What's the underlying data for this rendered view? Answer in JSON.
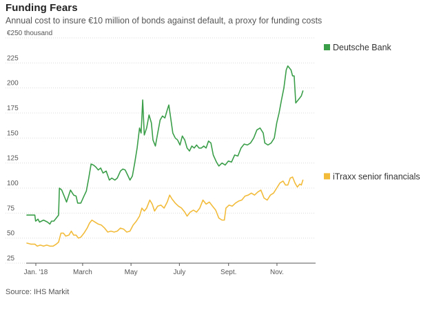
{
  "title": "Funding Fears",
  "subtitle": "Annual cost to insure €10 million of bonds against default, a proxy for funding costs",
  "source": "Source: IHS Markit",
  "chart_data": {
    "type": "line",
    "title": "Funding Fears",
    "subtitle": "Annual cost to insure €10 million of bonds against default, a proxy for funding costs",
    "ylabel": "€250 thousand",
    "xlabel": "",
    "ylim": [
      25,
      250
    ],
    "yticks": [
      25,
      50,
      75,
      100,
      125,
      150,
      175,
      200,
      225,
      250
    ],
    "ytick_labels": [
      "25",
      "50",
      "75",
      "100",
      "125",
      "150",
      "175",
      "200",
      "225",
      "€250 thousand"
    ],
    "xlim": [
      "2018-01-01",
      "2018-12-31"
    ],
    "xticks": [
      {
        "date": "2018-01-01",
        "label": "Jan. '18"
      },
      {
        "date": "2018-03-01",
        "label": "March"
      },
      {
        "date": "2018-05-01",
        "label": "May"
      },
      {
        "date": "2018-07-01",
        "label": "July"
      },
      {
        "date": "2018-09-01",
        "label": "Sept."
      },
      {
        "date": "2018-11-01",
        "label": "Nov."
      }
    ],
    "grid": "horizontal",
    "legend": "right, labels at line ends",
    "series": [
      {
        "name": "Deutsche Bank",
        "color": "#3a9e49",
        "points": [
          [
            "2018-01-01",
            73
          ],
          [
            "2018-01-06",
            73
          ],
          [
            "2018-01-11",
            73
          ],
          [
            "2018-01-12",
            67
          ],
          [
            "2018-01-15",
            69
          ],
          [
            "2018-01-17",
            66
          ],
          [
            "2018-01-22",
            68
          ],
          [
            "2018-01-27",
            66
          ],
          [
            "2018-01-30",
            64
          ],
          [
            "2018-02-01",
            67
          ],
          [
            "2018-02-04",
            67
          ],
          [
            "2018-02-07",
            70
          ],
          [
            "2018-02-10",
            73
          ],
          [
            "2018-02-11",
            100
          ],
          [
            "2018-02-14",
            98
          ],
          [
            "2018-02-17",
            92
          ],
          [
            "2018-02-20",
            86
          ],
          [
            "2018-02-25",
            98
          ],
          [
            "2018-03-01",
            93
          ],
          [
            "2018-03-04",
            92
          ],
          [
            "2018-03-06",
            85
          ],
          [
            "2018-03-10",
            85
          ],
          [
            "2018-03-14",
            92
          ],
          [
            "2018-03-17",
            97
          ],
          [
            "2018-03-20",
            110
          ],
          [
            "2018-03-23",
            124
          ],
          [
            "2018-03-26",
            123
          ],
          [
            "2018-03-29",
            121
          ],
          [
            "2018-04-01",
            118
          ],
          [
            "2018-04-04",
            120
          ],
          [
            "2018-04-07",
            115
          ],
          [
            "2018-04-11",
            117
          ],
          [
            "2018-04-15",
            108
          ],
          [
            "2018-04-18",
            110
          ],
          [
            "2018-04-22",
            108
          ],
          [
            "2018-04-25",
            110
          ],
          [
            "2018-04-29",
            117
          ],
          [
            "2018-05-02",
            119
          ],
          [
            "2018-05-05",
            118
          ],
          [
            "2018-05-08",
            113
          ],
          [
            "2018-05-11",
            108
          ],
          [
            "2018-05-14",
            112
          ],
          [
            "2018-05-17",
            125
          ],
          [
            "2018-05-20",
            140
          ],
          [
            "2018-05-23",
            160
          ],
          [
            "2018-05-25",
            155
          ],
          [
            "2018-05-27",
            188
          ],
          [
            "2018-05-29",
            153
          ],
          [
            "2018-06-01",
            160
          ],
          [
            "2018-06-04",
            173
          ],
          [
            "2018-06-07",
            165
          ],
          [
            "2018-06-09",
            148
          ],
          [
            "2018-06-12",
            142
          ],
          [
            "2018-06-15",
            155
          ],
          [
            "2018-06-18",
            168
          ],
          [
            "2018-06-21",
            172
          ],
          [
            "2018-06-24",
            170
          ],
          [
            "2018-06-27",
            178
          ],
          [
            "2018-06-29",
            183
          ],
          [
            "2018-07-01",
            172
          ],
          [
            "2018-07-04",
            155
          ],
          [
            "2018-07-07",
            150
          ],
          [
            "2018-07-10",
            148
          ],
          [
            "2018-07-13",
            143
          ],
          [
            "2018-07-16",
            152
          ],
          [
            "2018-07-19",
            148
          ],
          [
            "2018-07-22",
            140
          ],
          [
            "2018-07-25",
            137
          ],
          [
            "2018-07-28",
            142
          ],
          [
            "2018-07-31",
            140
          ],
          [
            "2018-08-03",
            143
          ],
          [
            "2018-08-06",
            140
          ],
          [
            "2018-08-09",
            140
          ],
          [
            "2018-08-12",
            142
          ],
          [
            "2018-08-15",
            140
          ],
          [
            "2018-08-18",
            147
          ],
          [
            "2018-08-21",
            145
          ],
          [
            "2018-08-24",
            133
          ],
          [
            "2018-08-28",
            126
          ],
          [
            "2018-08-31",
            122
          ],
          [
            "2018-09-04",
            125
          ],
          [
            "2018-09-08",
            123
          ],
          [
            "2018-09-12",
            127
          ],
          [
            "2018-09-16",
            126
          ],
          [
            "2018-09-20",
            133
          ],
          [
            "2018-09-24",
            132
          ],
          [
            "2018-09-28",
            140
          ],
          [
            "2018-10-02",
            144
          ],
          [
            "2018-10-06",
            143
          ],
          [
            "2018-10-10",
            145
          ],
          [
            "2018-10-14",
            150
          ],
          [
            "2018-10-18",
            158
          ],
          [
            "2018-10-22",
            160
          ],
          [
            "2018-10-26",
            155
          ],
          [
            "2018-10-28",
            145
          ],
          [
            "2018-11-01",
            143
          ],
          [
            "2018-11-05",
            145
          ],
          [
            "2018-11-09",
            150
          ],
          [
            "2018-11-12",
            165
          ],
          [
            "2018-11-15",
            175
          ],
          [
            "2018-11-18",
            188
          ],
          [
            "2018-11-21",
            200
          ],
          [
            "2018-11-24",
            218
          ],
          [
            "2018-11-26",
            222
          ],
          [
            "2018-11-28",
            220
          ],
          [
            "2018-11-30",
            218
          ],
          [
            "2018-12-02",
            212
          ],
          [
            "2018-12-04",
            212
          ],
          [
            "2018-12-06",
            185
          ],
          [
            "2018-12-09",
            188
          ],
          [
            "2018-12-11",
            190
          ],
          [
            "2018-12-13",
            192
          ],
          [
            "2018-12-15",
            197
          ]
        ]
      },
      {
        "name": "iTraxx senior financials",
        "color": "#f2bb3a",
        "points": [
          [
            "2018-01-01",
            45
          ],
          [
            "2018-01-06",
            44
          ],
          [
            "2018-01-11",
            44
          ],
          [
            "2018-01-14",
            42
          ],
          [
            "2018-01-18",
            43
          ],
          [
            "2018-01-22",
            42
          ],
          [
            "2018-01-26",
            43
          ],
          [
            "2018-01-30",
            42
          ],
          [
            "2018-02-03",
            42
          ],
          [
            "2018-02-07",
            44
          ],
          [
            "2018-02-10",
            46
          ],
          [
            "2018-02-13",
            55
          ],
          [
            "2018-02-16",
            55
          ],
          [
            "2018-02-19",
            52
          ],
          [
            "2018-02-23",
            53
          ],
          [
            "2018-02-26",
            57
          ],
          [
            "2018-03-01",
            53
          ],
          [
            "2018-03-04",
            53
          ],
          [
            "2018-03-07",
            50
          ],
          [
            "2018-03-10",
            51
          ],
          [
            "2018-03-14",
            55
          ],
          [
            "2018-03-18",
            60
          ],
          [
            "2018-03-21",
            65
          ],
          [
            "2018-03-24",
            68
          ],
          [
            "2018-03-28",
            66
          ],
          [
            "2018-04-01",
            64
          ],
          [
            "2018-04-05",
            63
          ],
          [
            "2018-04-09",
            60
          ],
          [
            "2018-04-13",
            56
          ],
          [
            "2018-04-17",
            57
          ],
          [
            "2018-04-21",
            56
          ],
          [
            "2018-04-25",
            57
          ],
          [
            "2018-04-29",
            60
          ],
          [
            "2018-05-03",
            59
          ],
          [
            "2018-05-07",
            56
          ],
          [
            "2018-05-11",
            57
          ],
          [
            "2018-05-15",
            63
          ],
          [
            "2018-05-19",
            67
          ],
          [
            "2018-05-23",
            72
          ],
          [
            "2018-05-26",
            80
          ],
          [
            "2018-05-29",
            77
          ],
          [
            "2018-06-01",
            80
          ],
          [
            "2018-06-05",
            88
          ],
          [
            "2018-06-08",
            84
          ],
          [
            "2018-06-11",
            77
          ],
          [
            "2018-06-15",
            82
          ],
          [
            "2018-06-19",
            83
          ],
          [
            "2018-06-23",
            80
          ],
          [
            "2018-06-27",
            86
          ],
          [
            "2018-06-30",
            93
          ],
          [
            "2018-07-03",
            89
          ],
          [
            "2018-07-07",
            85
          ],
          [
            "2018-07-11",
            82
          ],
          [
            "2018-07-15",
            80
          ],
          [
            "2018-07-19",
            76
          ],
          [
            "2018-07-22",
            72
          ],
          [
            "2018-07-26",
            76
          ],
          [
            "2018-07-30",
            78
          ],
          [
            "2018-08-03",
            76
          ],
          [
            "2018-08-07",
            80
          ],
          [
            "2018-08-11",
            88
          ],
          [
            "2018-08-15",
            84
          ],
          [
            "2018-08-19",
            86
          ],
          [
            "2018-08-23",
            82
          ],
          [
            "2018-08-27",
            78
          ],
          [
            "2018-08-31",
            70
          ],
          [
            "2018-09-04",
            68
          ],
          [
            "2018-09-07",
            68
          ],
          [
            "2018-09-09",
            80
          ],
          [
            "2018-09-13",
            83
          ],
          [
            "2018-09-17",
            82
          ],
          [
            "2018-09-21",
            85
          ],
          [
            "2018-09-25",
            87
          ],
          [
            "2018-09-29",
            88
          ],
          [
            "2018-10-03",
            92
          ],
          [
            "2018-10-07",
            93
          ],
          [
            "2018-10-11",
            95
          ],
          [
            "2018-10-15",
            93
          ],
          [
            "2018-10-19",
            96
          ],
          [
            "2018-10-23",
            98
          ],
          [
            "2018-10-27",
            90
          ],
          [
            "2018-10-31",
            88
          ],
          [
            "2018-11-04",
            93
          ],
          [
            "2018-11-08",
            95
          ],
          [
            "2018-11-12",
            100
          ],
          [
            "2018-11-16",
            105
          ],
          [
            "2018-11-20",
            107
          ],
          [
            "2018-11-23",
            103
          ],
          [
            "2018-11-26",
            103
          ],
          [
            "2018-11-29",
            110
          ],
          [
            "2018-12-02",
            111
          ],
          [
            "2018-12-05",
            105
          ],
          [
            "2018-12-08",
            101
          ],
          [
            "2018-12-11",
            104
          ],
          [
            "2018-12-13",
            103
          ],
          [
            "2018-12-15",
            108
          ]
        ]
      }
    ]
  }
}
